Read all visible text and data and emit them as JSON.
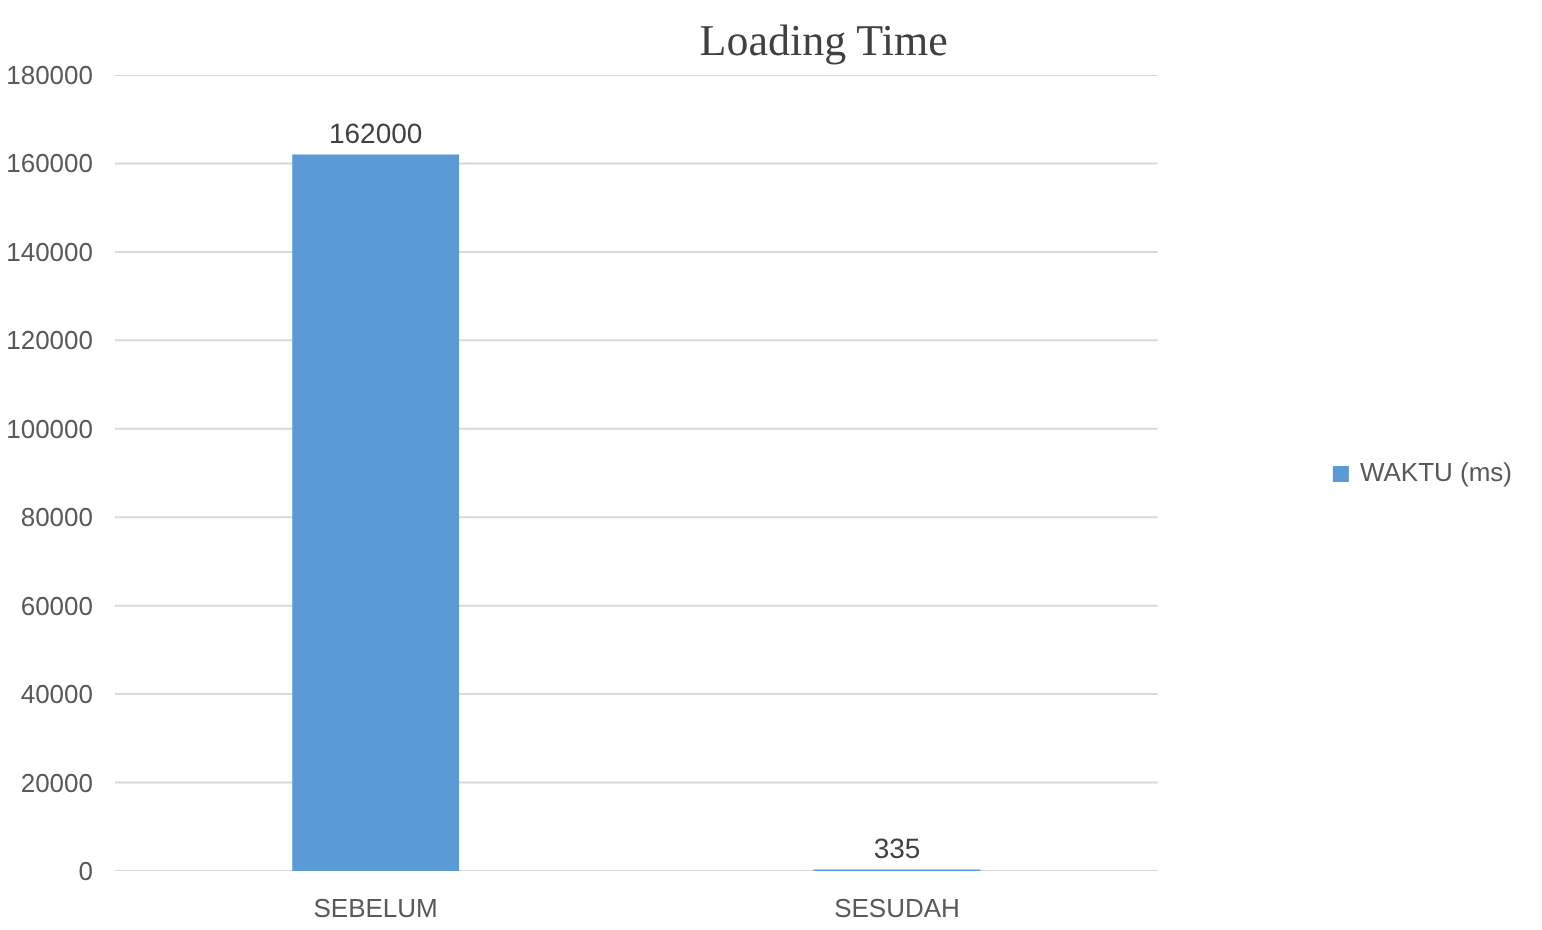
{
  "chart_data": {
    "type": "bar",
    "title": "Loading Time",
    "categories": [
      "SEBELUM",
      "SESUDAH"
    ],
    "series": [
      {
        "name": "WAKTU (ms)",
        "color": "#5b9bd5",
        "values": [
          162000,
          335
        ]
      }
    ],
    "ylim": [
      0,
      180000
    ],
    "yticks": [
      0,
      20000,
      40000,
      60000,
      80000,
      100000,
      120000,
      140000,
      160000,
      180000
    ],
    "grid": "y",
    "legend": "right",
    "data_labels": true
  }
}
